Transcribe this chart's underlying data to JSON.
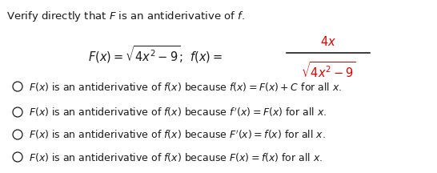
{
  "title": "Verify directly that $\\mathit{F}$ is an antiderivative of $\\mathit{f}$.",
  "options": [
    "$F(x)$ is an antiderivative of $f(x)$ because $f(x) = F(x) + C$ for all $x$.",
    "$F(x)$ is an antiderivative of $f(x)$ because $f\\,'(x) = F(x)$ for all $x$.",
    "$F(x)$ is an antiderivative of $f(x)$ because $F'(x) = f(x)$ for all $x$.",
    "$F(x)$ is an antiderivative of $f(x)$ because $F(x) = f(x)$ for all $x$."
  ],
  "background_color": "#ffffff",
  "text_color": "#1a1a1a",
  "red_color": "#dd0000",
  "font_size_title": 9.5,
  "font_size_formula": 10.5,
  "font_size_options": 9.0,
  "fig_width": 5.46,
  "fig_height": 2.16
}
